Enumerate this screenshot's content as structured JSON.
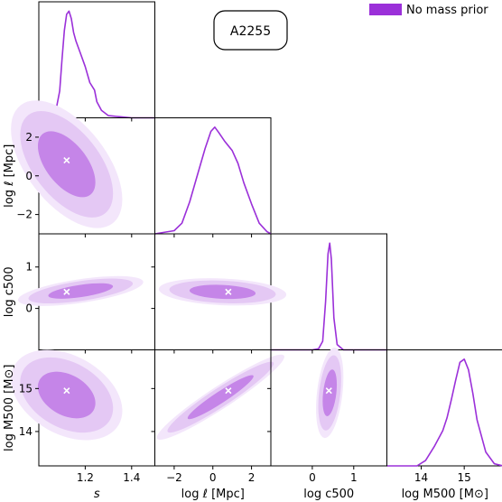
{
  "chart_data": {
    "type": "corner",
    "annotation": "A2255",
    "legend": {
      "label": "No mass prior",
      "color": "#9b30d9",
      "placement": "top-right"
    },
    "parameters": [
      {
        "name": "s",
        "label": "s",
        "range": [
          1.0,
          1.5
        ],
        "ticks": [
          1.2,
          1.4
        ],
        "tick_labels": [
          "1.2",
          "1.4"
        ]
      },
      {
        "name": "log_ell",
        "label": "log ℓ [Mpc]",
        "range": [
          -3,
          3
        ],
        "ticks": [
          -2,
          0,
          2
        ],
        "tick_labels": [
          "−2",
          "0",
          "2"
        ]
      },
      {
        "name": "log_c500",
        "label": "log c500",
        "range": [
          -1,
          1.8
        ],
        "ticks": [
          0,
          1
        ],
        "tick_labels": [
          "0",
          "1"
        ]
      },
      {
        "name": "log_M500",
        "label": "log M500 [M⊙]",
        "range": [
          13.2,
          15.9
        ],
        "ticks": [
          14,
          15
        ],
        "tick_labels": [
          "14",
          "15"
        ]
      }
    ],
    "axis_labels": {
      "x": [
        "s",
        "log ℓ [Mpc]",
        "log c500",
        "log M500 [M⊙]"
      ],
      "y": [
        "log ℓ [Mpc]",
        "log c500",
        "log M500 [M⊙]"
      ]
    },
    "best_fit": {
      "s": 1.12,
      "log_ell": 0.8,
      "log_c500": 0.4,
      "log_M500": 14.95
    },
    "marginals": {
      "s": {
        "x": [
          1.05,
          1.07,
          1.09,
          1.1,
          1.11,
          1.12,
          1.13,
          1.14,
          1.15,
          1.16,
          1.18,
          1.2,
          1.22,
          1.24,
          1.25,
          1.27,
          1.3,
          1.35,
          1.4,
          1.45,
          1.5
        ],
        "y": [
          0.0,
          0.03,
          0.25,
          0.55,
          0.82,
          0.97,
          1.0,
          0.93,
          0.8,
          0.72,
          0.6,
          0.48,
          0.33,
          0.26,
          0.15,
          0.07,
          0.02,
          0.01,
          0.0,
          0.0,
          0.0
        ]
      },
      "log_ell": {
        "x": [
          -3.0,
          -2.0,
          -1.6,
          -1.2,
          -0.8,
          -0.4,
          -0.1,
          0.1,
          0.3,
          0.6,
          1.0,
          1.3,
          1.6,
          2.0,
          2.4,
          2.8,
          3.0
        ],
        "y": [
          0.0,
          0.03,
          0.1,
          0.3,
          0.55,
          0.8,
          0.96,
          1.0,
          0.95,
          0.87,
          0.78,
          0.66,
          0.48,
          0.28,
          0.1,
          0.02,
          0.0
        ]
      },
      "log_c500": {
        "x": [
          -1.0,
          0.0,
          0.15,
          0.25,
          0.32,
          0.38,
          0.42,
          0.46,
          0.52,
          0.6,
          0.75,
          1.8
        ],
        "y": [
          0.0,
          0.0,
          0.01,
          0.08,
          0.45,
          0.9,
          1.0,
          0.85,
          0.3,
          0.05,
          0.0,
          0.0
        ]
      },
      "log_M500": {
        "x": [
          13.2,
          13.9,
          14.1,
          14.3,
          14.5,
          14.6,
          14.7,
          14.8,
          14.9,
          15.0,
          15.1,
          15.2,
          15.3,
          15.5,
          15.7,
          15.9
        ],
        "y": [
          0.0,
          0.0,
          0.05,
          0.18,
          0.33,
          0.45,
          0.62,
          0.8,
          0.97,
          1.0,
          0.9,
          0.68,
          0.43,
          0.13,
          0.02,
          0.0
        ]
      }
    },
    "joint_2d": [
      {
        "x": "s",
        "y": "log_ell",
        "center": [
          1.12,
          0.6
        ],
        "sigma": [
          0.08,
          1.1
        ],
        "rho": -0.55
      },
      {
        "x": "s",
        "y": "log_c500",
        "center": [
          1.18,
          0.42
        ],
        "sigma": [
          0.09,
          0.12
        ],
        "rho": 0.6
      },
      {
        "x": "s",
        "y": "log_M500",
        "center": [
          1.12,
          14.85
        ],
        "sigma": [
          0.08,
          0.35
        ],
        "rho": -0.35
      },
      {
        "x": "log_ell",
        "y": "log_c500",
        "center": [
          0.5,
          0.4
        ],
        "sigma": [
          1.1,
          0.11
        ],
        "rho": -0.2
      },
      {
        "x": "log_ell",
        "y": "log_M500",
        "center": [
          0.4,
          14.8
        ],
        "sigma": [
          1.1,
          0.33
        ],
        "rho": 0.95
      },
      {
        "x": "log_c500",
        "y": "log_M500",
        "center": [
          0.42,
          14.9
        ],
        "sigma": [
          0.11,
          0.35
        ],
        "rho": 0.35
      }
    ]
  }
}
